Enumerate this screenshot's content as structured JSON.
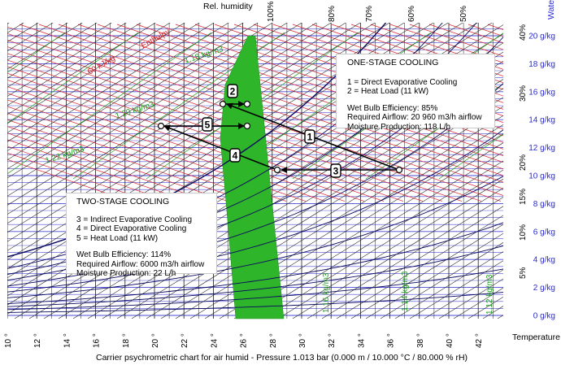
{
  "chart": {
    "top_label": "Rel. humidity",
    "water_label": "Water",
    "temperature_label": "Temperature",
    "enthalpy_label": "Enthalpy",
    "enthalpy_value_label": "60 kJ/kg",
    "footer": "Carrier psychrometric chart for air humid - Pressure  1.013 bar (0.000 m / 10.000 °C / 80.000 % rH)",
    "temperature_ticks": [
      "10 °",
      "12 °",
      "14 °",
      "16 °",
      "18 °",
      "20 °",
      "22 °",
      "24 °",
      "26 °",
      "28 °",
      "30 °",
      "32 °",
      "34 °",
      "36 °",
      "38 °",
      "40 °",
      "42 °"
    ],
    "water_ticks": [
      "0 g/kg",
      "2 g/kg",
      "4 g/kg",
      "6 g/kg",
      "8 g/kg",
      "10 g/kg",
      "12 g/kg",
      "14 g/kg",
      "16 g/kg",
      "18 g/kg",
      "20 g/kg"
    ],
    "rh_top_ticks": [
      "100%",
      "80%",
      "70%",
      "60%",
      "50%"
    ],
    "rh_side_ticks": [
      "40%",
      "30%",
      "20%",
      "15%",
      "10%",
      "5%"
    ],
    "density_left": [
      "1.18 kg/m3",
      "1.20 kg/m3",
      "1.22 kg/m3"
    ],
    "density_bottom": [
      "1.16 kg/m3",
      "1.14 kg/m3",
      "1.12 kg/m3"
    ],
    "accent_colors": {
      "zone": "#2fb52a",
      "enthalpy": "#e0202a",
      "density": "#1a9a1a",
      "humidity": "#2a2ad0",
      "grid": "#1a1a1a"
    }
  },
  "points": [
    {
      "label": "1"
    },
    {
      "label": "2"
    },
    {
      "label": "3"
    },
    {
      "label": "4"
    },
    {
      "label": "5"
    }
  ],
  "one_stage": {
    "title": "ONE-STAGE COOLING",
    "lines": [
      "1 = Direct Evaporative Cooling",
      "2 = Heat Load (11 kW)"
    ],
    "stats": [
      "Wet Bulb Efficiency: 85%",
      "Required Airflow: 20 960 m3/h airflow",
      "Moisture Production: 118 L/h"
    ]
  },
  "two_stage": {
    "title": "TWO-STAGE COOLING",
    "lines": [
      "3 = Indirect Evaporative Cooling",
      "4 = Direct Evaporative Cooling",
      "5 = Heat Load (11 kW)"
    ],
    "stats": [
      "Wet Bulb Efficiency: 114%",
      "Required Airflow: 6000 m3/h airflow",
      "Moisture Production: 22 L/h"
    ]
  }
}
